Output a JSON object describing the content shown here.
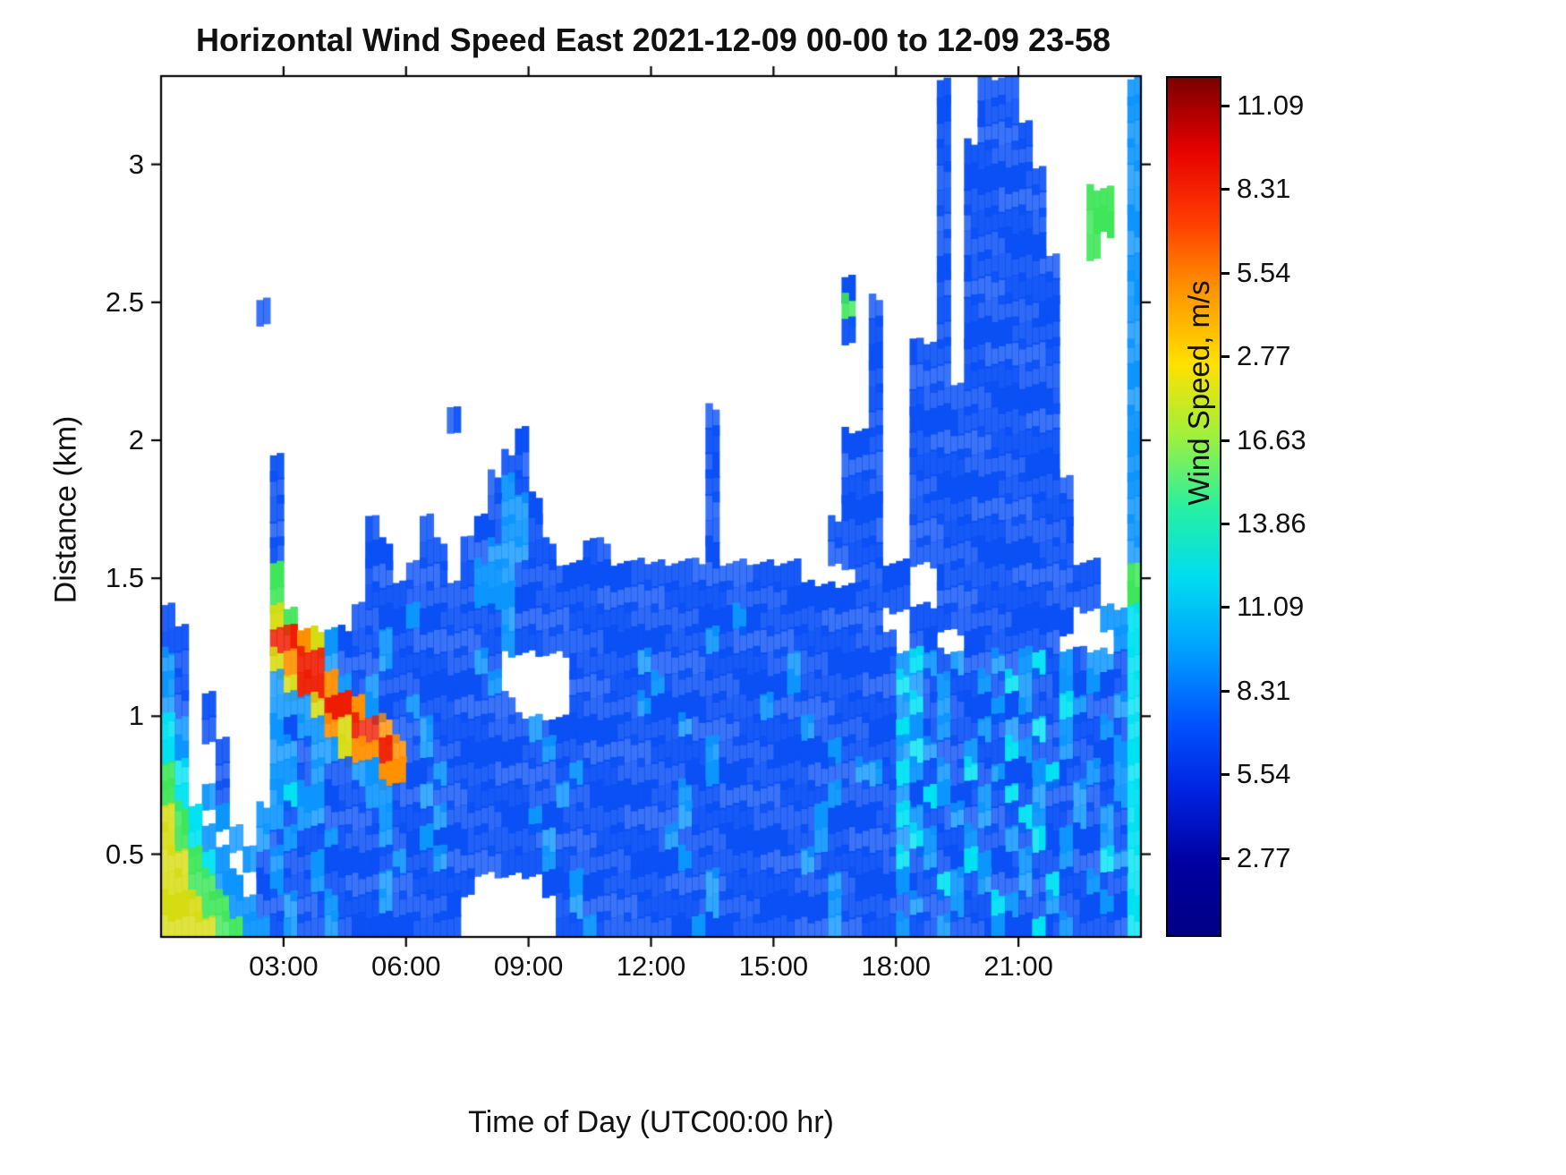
{
  "title": "Horizontal Wind Speed East 2021-12-09 00-00 to 12-09 23-58",
  "labels": {
    "x": "Time of Day (UTC00:00 hr)",
    "y": "Distance (km)",
    "colorbar": "Wind Speed, m/s"
  },
  "colorbar": {
    "tick_labels": [
      "11.09",
      "8.31",
      "5.54",
      "2.77",
      "16.63",
      "13.86",
      "11.09",
      "8.31",
      "5.54",
      "2.77"
    ],
    "gradient_top_to_bottom": [
      "#7A0000",
      "#E60000",
      "#FF3C00",
      "#FF9600",
      "#FFE100",
      "#A0F03C",
      "#28F0A0",
      "#00DCF0",
      "#00A0FF",
      "#0055FF",
      "#0022E0",
      "#0000A0",
      "#000085"
    ]
  },
  "chart_data": {
    "type": "heatmap",
    "title": "Horizontal Wind Speed East 2021-12-09 00-00 to 12-09 23-58",
    "xlabel": "Time of Day (UTC00:00 hr)",
    "ylabel": "Distance (km)",
    "x_ticks": [
      "03:00",
      "06:00",
      "09:00",
      "12:00",
      "15:00",
      "18:00",
      "21:00"
    ],
    "x_tick_hours": [
      3,
      6,
      9,
      12,
      15,
      18,
      21
    ],
    "x_range_hours": [
      0,
      24
    ],
    "y_ticks": [
      "3",
      "2.5",
      "2",
      "1.5",
      "1",
      "0.5"
    ],
    "y_tick_values": [
      3,
      2.5,
      2,
      1.5,
      1,
      0.5
    ],
    "y_range_km": [
      0.2,
      3.32
    ],
    "grid_encoding": "Each string is one row of the heatmap, top row = 3.32 km down to bottom row = 0.2 km (39 rows, 0.08 km per row). Each of the 72 characters is a 20-minute bin from 00:00 to 24:00. '.' = no data (white); letters map to wind speed via value_map.",
    "value_map": {
      "b": {
        "speed_ms": 4,
        "color": "#0A50F5"
      },
      "c": {
        "speed_ms": 7,
        "color": "#0D95FF"
      },
      "C": {
        "speed_ms": 10,
        "color": "#00E2F2"
      },
      "g": {
        "speed_ms": 12.5,
        "color": "#3FE65A"
      },
      "y": {
        "speed_ms": 15,
        "color": "#D6DC12"
      },
      "o": {
        "speed_ms": 18,
        "color": "#FF9000"
      },
      "r": {
        "speed_ms": 20.5,
        "color": "#EE1C00"
      }
    },
    "grid": [
      ".........................................................b..bbb........c",
      ".........................................................b..bbb........c",
      ".........................................................b..bbbb.......c",
      ".........................................................b.bbbbb.......c",
      ".........................................................b.bbbbbb......c",
      ".........................................................b.bbbbbb...gg.c",
      ".........................................................b.bbbbbb...gg.c",
      ".........................................................b.bbbbbb...g..c",
      ".........................................................b.bbbbbbb.....c",
      "..................................................b......b.bbbbbbb.....c",
      ".......b..........................................g.b....b.bbbbbbb.....c",
      "..................................................b.b....b.bbbbbbb.....c",
      "....................................................b..bbb.bbbbbbb.....c",
      "....................................................b..bbb.bbbbbbb.....c",
      "....................................................b..bbbbbbbbbbb.....c",
      ".....................b..................b...........b..bbbbbbbbbbb.....c",
      "..........................b.............b.........bbb..bbbbbbbbbbb.....c",
      "........b................bb.............b.........bbb..bbbbbbbbbbb.....c",
      "........b...............bcb.............b.........bbb..bbbbbbbbbbbb....c",
      "........b...............bccb............b.........bbb..bbbbbbbbbbbb....c",
      "........b......b...b...bbccb............b........bbbb..bbbbbbbbbbbb....c",
      "........b......bb..bb.bbcccbb..bb.......b........bbbb..bbbbbbbbbbbb....c",
      "........g......bb.bbb.bcccbbbbbbbbbbbbbbbbbbbbb....bbbb..bbbbbbbbbbbb..gyC",
      "........g......bbbbbbbbcccbbbbbbbbbbbbbbbbbbbbbbbbbbbbb..bbbbbbbbbbbb..ggC",
      "b.......yg....bbbbcbbbbbbcbbbbbbbbbbbbbbbbcbbbbbbbbbb..bbbbbbbbbbbb..ccC",
      "bb......rroycbbbcbbbbbbbbcbbbbbbbbbbbbbbcbbbbbbbbbbbbb.bb..bbbbbbb....cC",
      "cb......yorrcbbbcbbbbbbcb.....bbbbbcbbbbbbbbbbcbbbbbbbcCcbcbbcbcCbcbccbC",
      "cb......cyrrocbcbbbbbbbbc.....bbbbbbcbbbbbbbbbcbbbbbbbCcbcbbcbCcbbcbcbbC",
      "cb.b....cccyrrocbbcbbbbbbb....bbbbbcbbbbbbbbcbbbbbbbbbcCbcbbbcbcbbCcbbcC",
      "Cc.b....cbccoyrrobbcbbbbbbbcbbbbbbbbbbcbbbbbbbbcbbbbbbCcbcbbcbcbCbcbbcbC",
      "Cc..b...ccbccyoorobcbbbbbbbbcbbbbbbbbbbbcbbbbbbbbcbbbbcCcbbcbbCcbbcbbbcC",
      "gC..b...ccbcbbccoobbcbbbbbbbbbcbbbbbbbbbcbbbbbbbbbbccbCcbcbCbcbbcCbbcbcC",
      "gC.cb...cCccbbbccbbcbbbbbbbbbcbbbbbbbbcbbbbbbbbbbcbbbbcbCcbbcbCbcbbcbbcC",
      "ygC.c..ccbccbbbbcbbbcbbbbbbcbbbbbbbbbbcbbbbbbbbbcbbbbbCcbbcbcbbCcbbcbcbC",
      "ygCc.c.cbcbbcbbbcbbcbbbbbbbbcbbbbbbbbcbbbbbbbbbbcbbbbbcCcbbcbbcbCbcbbcbC",
      "yygCc.cbcbbcbbbbbcbbcbbbbbbbcbbbbbbbbbcbbbbbbbbcbbbbbbCbcbbCcbbcbbcbbCcC",
      "yyggcc.bcbbcbbbbcbbbbbb.....bbcbbbbbbbbbcbbbbbbbbcbbbbcbbCcbcbbcbCbbcbbC",
      "yyyggccbbcbbcbbbcbbbbb.......bcbbbbbbbbbcbbbbbbbbcbbbbbcbbcbbCcbbcbbbcbC",
      "yyyyggccbcbbcbbbbbbbbb.......bbcbbbbbbbcbbbbbbbbbcbbbbcbbcbbbcbbCbcbbbbC"
    ]
  }
}
